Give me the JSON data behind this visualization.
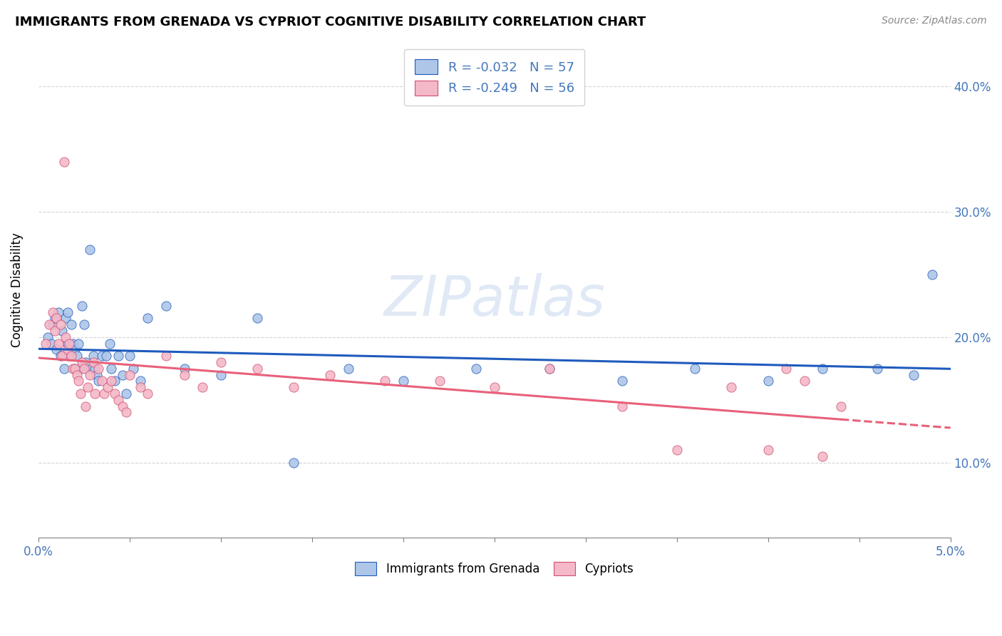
{
  "title": "IMMIGRANTS FROM GRENADA VS CYPRIOT COGNITIVE DISABILITY CORRELATION CHART",
  "source": "Source: ZipAtlas.com",
  "ylabel": "Cognitive Disability",
  "yticks": [
    0.1,
    0.2,
    0.3,
    0.4
  ],
  "ytick_labels": [
    "10.0%",
    "20.0%",
    "30.0%",
    "40.0%"
  ],
  "xlim": [
    0.0,
    0.05
  ],
  "ylim": [
    0.04,
    0.435
  ],
  "legend_entry1": "R = -0.032   N = 57",
  "legend_entry2": "R = -0.249   N = 56",
  "legend_label1": "Immigrants from Grenada",
  "legend_label2": "Cypriots",
  "color_blue": "#aec6e8",
  "color_pink": "#f4b8c8",
  "line_color_blue": "#1f5bbd",
  "line_color_pink": "#e8607a",
  "watermark": "ZIPatlas",
  "grenada_x": [
    0.0005,
    0.0007,
    0.0008,
    0.0009,
    0.001,
    0.0011,
    0.0012,
    0.0013,
    0.0014,
    0.0015,
    0.0016,
    0.0016,
    0.0017,
    0.0018,
    0.0019,
    0.002,
    0.002,
    0.0021,
    0.0022,
    0.0023,
    0.0024,
    0.0025,
    0.0026,
    0.0028,
    0.0029,
    0.003,
    0.0031,
    0.0032,
    0.0033,
    0.0035,
    0.0037,
    0.0039,
    0.004,
    0.0042,
    0.0044,
    0.0046,
    0.0048,
    0.005,
    0.0052,
    0.0056,
    0.006,
    0.007,
    0.008,
    0.01,
    0.012,
    0.014,
    0.017,
    0.02,
    0.024,
    0.028,
    0.032,
    0.036,
    0.04,
    0.043,
    0.046,
    0.048,
    0.049
  ],
  "grenada_y": [
    0.2,
    0.195,
    0.21,
    0.215,
    0.19,
    0.22,
    0.185,
    0.205,
    0.175,
    0.215,
    0.22,
    0.195,
    0.185,
    0.21,
    0.195,
    0.19,
    0.175,
    0.185,
    0.195,
    0.175,
    0.225,
    0.21,
    0.18,
    0.27,
    0.175,
    0.185,
    0.175,
    0.17,
    0.165,
    0.185,
    0.185,
    0.195,
    0.175,
    0.165,
    0.185,
    0.17,
    0.155,
    0.185,
    0.175,
    0.165,
    0.215,
    0.225,
    0.175,
    0.17,
    0.215,
    0.1,
    0.175,
    0.165,
    0.175,
    0.175,
    0.165,
    0.175,
    0.165,
    0.175,
    0.175,
    0.17,
    0.25
  ],
  "cypriot_x": [
    0.0004,
    0.0006,
    0.0008,
    0.0009,
    0.001,
    0.0011,
    0.0012,
    0.0013,
    0.0014,
    0.0015,
    0.0016,
    0.0017,
    0.0018,
    0.0019,
    0.002,
    0.0021,
    0.0022,
    0.0023,
    0.0024,
    0.0025,
    0.0026,
    0.0027,
    0.0028,
    0.003,
    0.0031,
    0.0033,
    0.0035,
    0.0036,
    0.0038,
    0.004,
    0.0042,
    0.0044,
    0.0046,
    0.0048,
    0.005,
    0.0056,
    0.006,
    0.007,
    0.008,
    0.009,
    0.01,
    0.012,
    0.014,
    0.016,
    0.019,
    0.022,
    0.025,
    0.028,
    0.032,
    0.035,
    0.038,
    0.04,
    0.041,
    0.042,
    0.043,
    0.044
  ],
  "cypriot_y": [
    0.195,
    0.21,
    0.22,
    0.205,
    0.215,
    0.195,
    0.21,
    0.185,
    0.34,
    0.2,
    0.19,
    0.195,
    0.185,
    0.175,
    0.175,
    0.17,
    0.165,
    0.155,
    0.18,
    0.175,
    0.145,
    0.16,
    0.17,
    0.18,
    0.155,
    0.175,
    0.165,
    0.155,
    0.16,
    0.165,
    0.155,
    0.15,
    0.145,
    0.14,
    0.17,
    0.16,
    0.155,
    0.185,
    0.17,
    0.16,
    0.18,
    0.175,
    0.16,
    0.17,
    0.165,
    0.165,
    0.16,
    0.175,
    0.145,
    0.11,
    0.16,
    0.11,
    0.175,
    0.165,
    0.105,
    0.145
  ]
}
